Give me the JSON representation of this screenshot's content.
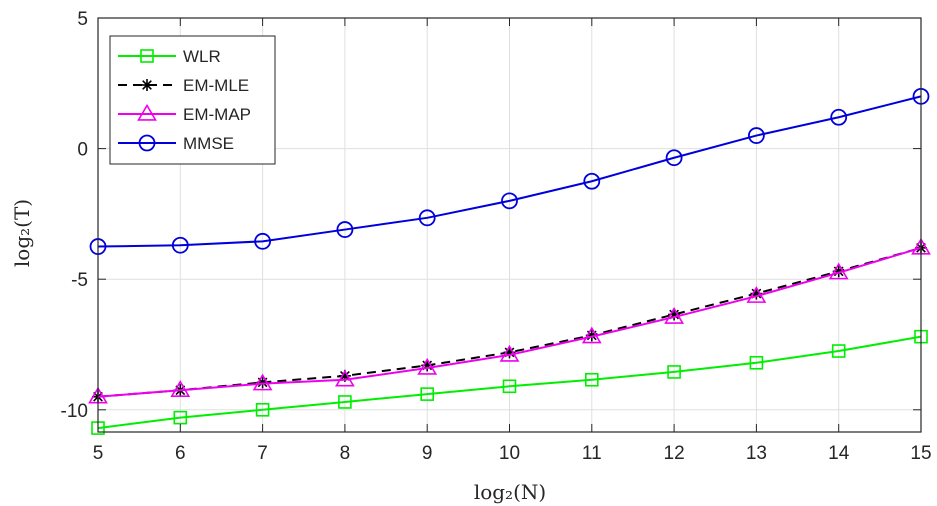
{
  "chart_data": {
    "type": "line",
    "xlabel": "log₂(N)",
    "ylabel": "log₂(T)",
    "xlim": [
      5,
      15
    ],
    "ylim": [
      -10.85,
      5
    ],
    "xticks": [
      5,
      6,
      7,
      8,
      9,
      10,
      11,
      12,
      13,
      14,
      15
    ],
    "yticks": [
      5,
      0,
      -5,
      -10
    ],
    "ytick_labels": [
      "5",
      "0",
      "-5",
      "-10"
    ],
    "grid": true,
    "legend_position": "top-left",
    "x": [
      5,
      6,
      7,
      8,
      9,
      10,
      11,
      12,
      13,
      14,
      15
    ],
    "series": [
      {
        "name": "WLR",
        "color": "#00ee00",
        "marker": "square",
        "line": "solid",
        "values": [
          -10.7,
          -10.3,
          -10.0,
          -9.7,
          -9.4,
          -9.1,
          -8.85,
          -8.55,
          -8.2,
          -7.75,
          -7.2
        ]
      },
      {
        "name": "EM-MLE",
        "color": "#000000",
        "marker": "asterisk",
        "line": "dashed",
        "values": [
          -9.5,
          -9.25,
          -8.95,
          -8.7,
          -8.3,
          -7.8,
          -7.15,
          -6.35,
          -5.55,
          -4.7,
          -3.8
        ]
      },
      {
        "name": "EM-MAP",
        "color": "#ee00ee",
        "marker": "triangle",
        "line": "solid",
        "values": [
          -9.5,
          -9.25,
          -9.0,
          -8.85,
          -8.4,
          -7.9,
          -7.2,
          -6.45,
          -5.65,
          -4.75,
          -3.8
        ]
      },
      {
        "name": "MMSE",
        "color": "#0000dd",
        "marker": "circle",
        "line": "solid",
        "values": [
          -3.75,
          -3.7,
          -3.55,
          -3.1,
          -2.65,
          -2.0,
          -1.25,
          -0.35,
          0.5,
          1.2,
          2.0
        ]
      }
    ]
  }
}
